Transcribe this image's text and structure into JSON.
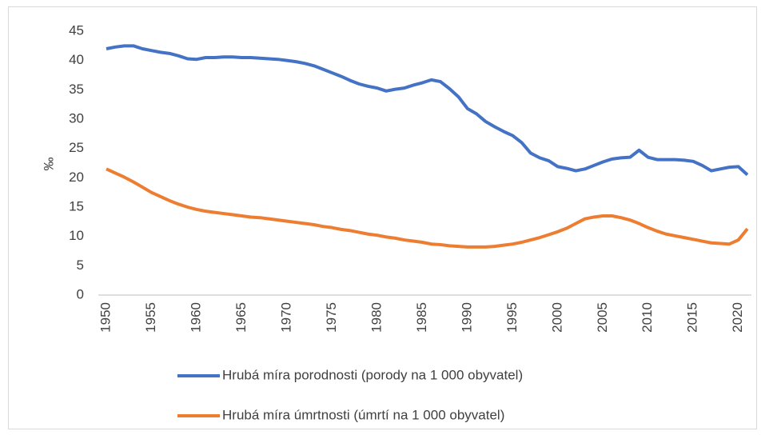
{
  "chart_data": {
    "type": "line",
    "y_label": "‰",
    "x": [
      1950,
      1951,
      1952,
      1953,
      1954,
      1955,
      1956,
      1957,
      1958,
      1959,
      1960,
      1961,
      1962,
      1963,
      1964,
      1965,
      1966,
      1967,
      1968,
      1969,
      1970,
      1971,
      1972,
      1973,
      1974,
      1975,
      1976,
      1977,
      1978,
      1979,
      1980,
      1981,
      1982,
      1983,
      1984,
      1985,
      1986,
      1987,
      1988,
      1989,
      1990,
      1991,
      1992,
      1993,
      1994,
      1995,
      1996,
      1997,
      1998,
      1999,
      2000,
      2001,
      2002,
      2003,
      2004,
      2005,
      2006,
      2007,
      2008,
      2009,
      2010,
      2011,
      2012,
      2013,
      2014,
      2015,
      2016,
      2017,
      2018,
      2019,
      2020,
      2021
    ],
    "series": [
      {
        "name": "Hrubá míra porodnosti (porody na 1 000 obyvatel)",
        "color": "#4472c4",
        "values": [
          42.0,
          42.3,
          42.5,
          42.5,
          42.0,
          41.7,
          41.4,
          41.2,
          40.8,
          40.3,
          40.2,
          40.5,
          40.5,
          40.6,
          40.6,
          40.5,
          40.5,
          40.4,
          40.3,
          40.2,
          40.0,
          39.8,
          39.5,
          39.1,
          38.5,
          37.9,
          37.3,
          36.6,
          36.0,
          35.6,
          35.3,
          34.8,
          35.1,
          35.3,
          35.8,
          36.2,
          36.7,
          36.4,
          35.2,
          33.8,
          31.8,
          30.9,
          29.6,
          28.7,
          27.9,
          27.2,
          26.0,
          24.2,
          23.4,
          22.9,
          21.9,
          21.6,
          21.2,
          21.5,
          22.1,
          22.7,
          23.2,
          23.4,
          23.5,
          24.7,
          23.5,
          23.1,
          23.1,
          23.1,
          23.0,
          22.8,
          22.1,
          21.2,
          21.5,
          21.8,
          21.9,
          20.5
        ]
      },
      {
        "name": "Hrubá míra úmrtnosti (úmrtí na 1 000 obyvatel)",
        "color": "#ed7d31",
        "values": [
          21.5,
          20.8,
          20.1,
          19.3,
          18.4,
          17.5,
          16.8,
          16.1,
          15.5,
          15.0,
          14.6,
          14.3,
          14.1,
          13.9,
          13.7,
          13.5,
          13.3,
          13.2,
          13.0,
          12.8,
          12.6,
          12.4,
          12.2,
          12.0,
          11.7,
          11.5,
          11.2,
          11.0,
          10.7,
          10.4,
          10.2,
          9.9,
          9.7,
          9.4,
          9.2,
          9.0,
          8.7,
          8.6,
          8.4,
          8.3,
          8.2,
          8.2,
          8.2,
          8.3,
          8.5,
          8.7,
          9.0,
          9.4,
          9.8,
          10.3,
          10.8,
          11.4,
          12.2,
          13.0,
          13.3,
          13.5,
          13.5,
          13.2,
          12.8,
          12.2,
          11.5,
          10.9,
          10.4,
          10.1,
          9.8,
          9.5,
          9.2,
          8.9,
          8.8,
          8.7,
          9.4,
          11.3
        ]
      }
    ],
    "xlim": [
      1950,
      2021
    ],
    "xticks": [
      1950,
      1955,
      1960,
      1965,
      1970,
      1975,
      1980,
      1985,
      1990,
      1995,
      2000,
      2005,
      2010,
      2015,
      2020
    ],
    "ylim": [
      0,
      45
    ],
    "yticks": [
      0,
      5,
      10,
      15,
      20,
      25,
      30,
      35,
      40,
      45
    ],
    "grid": false,
    "legend": "bottom"
  }
}
